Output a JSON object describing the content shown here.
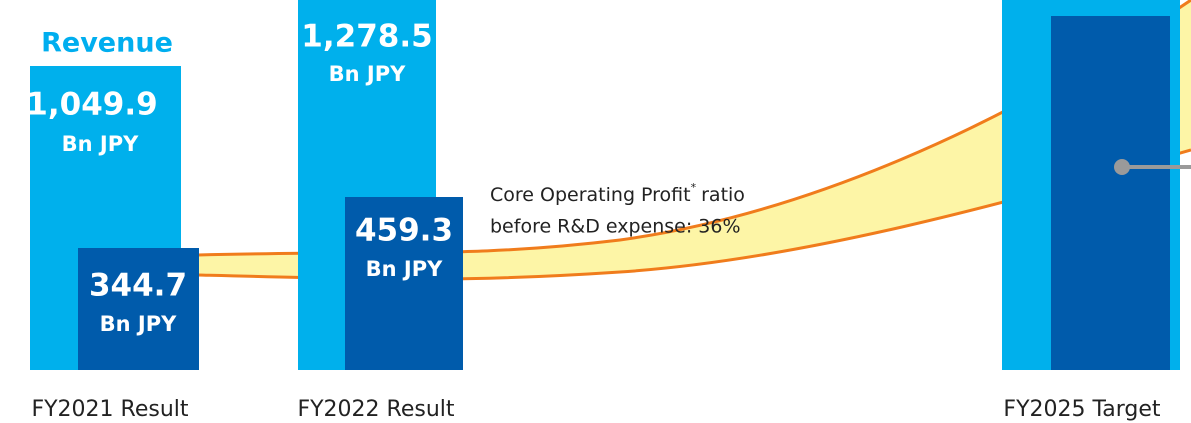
{
  "title": "Revenue",
  "columns": [
    {
      "label": "FY2021 Result",
      "revenue": {
        "value": "1,049.9",
        "unit": "Bn JPY"
      },
      "profit": {
        "value": "344.7",
        "unit": "Bn JPY"
      }
    },
    {
      "label": "FY2022 Result",
      "revenue": {
        "value": "1,278.5",
        "unit": "Bn JPY"
      },
      "profit": {
        "value": "459.3",
        "unit": "Bn JPY"
      }
    },
    {
      "label": "FY2025 Target"
    }
  ],
  "annotation": {
    "line1": "Core Operating Profit",
    "mark": "*",
    "line1_end": "ratio",
    "line2": "before R&D expense: 36%"
  }
}
